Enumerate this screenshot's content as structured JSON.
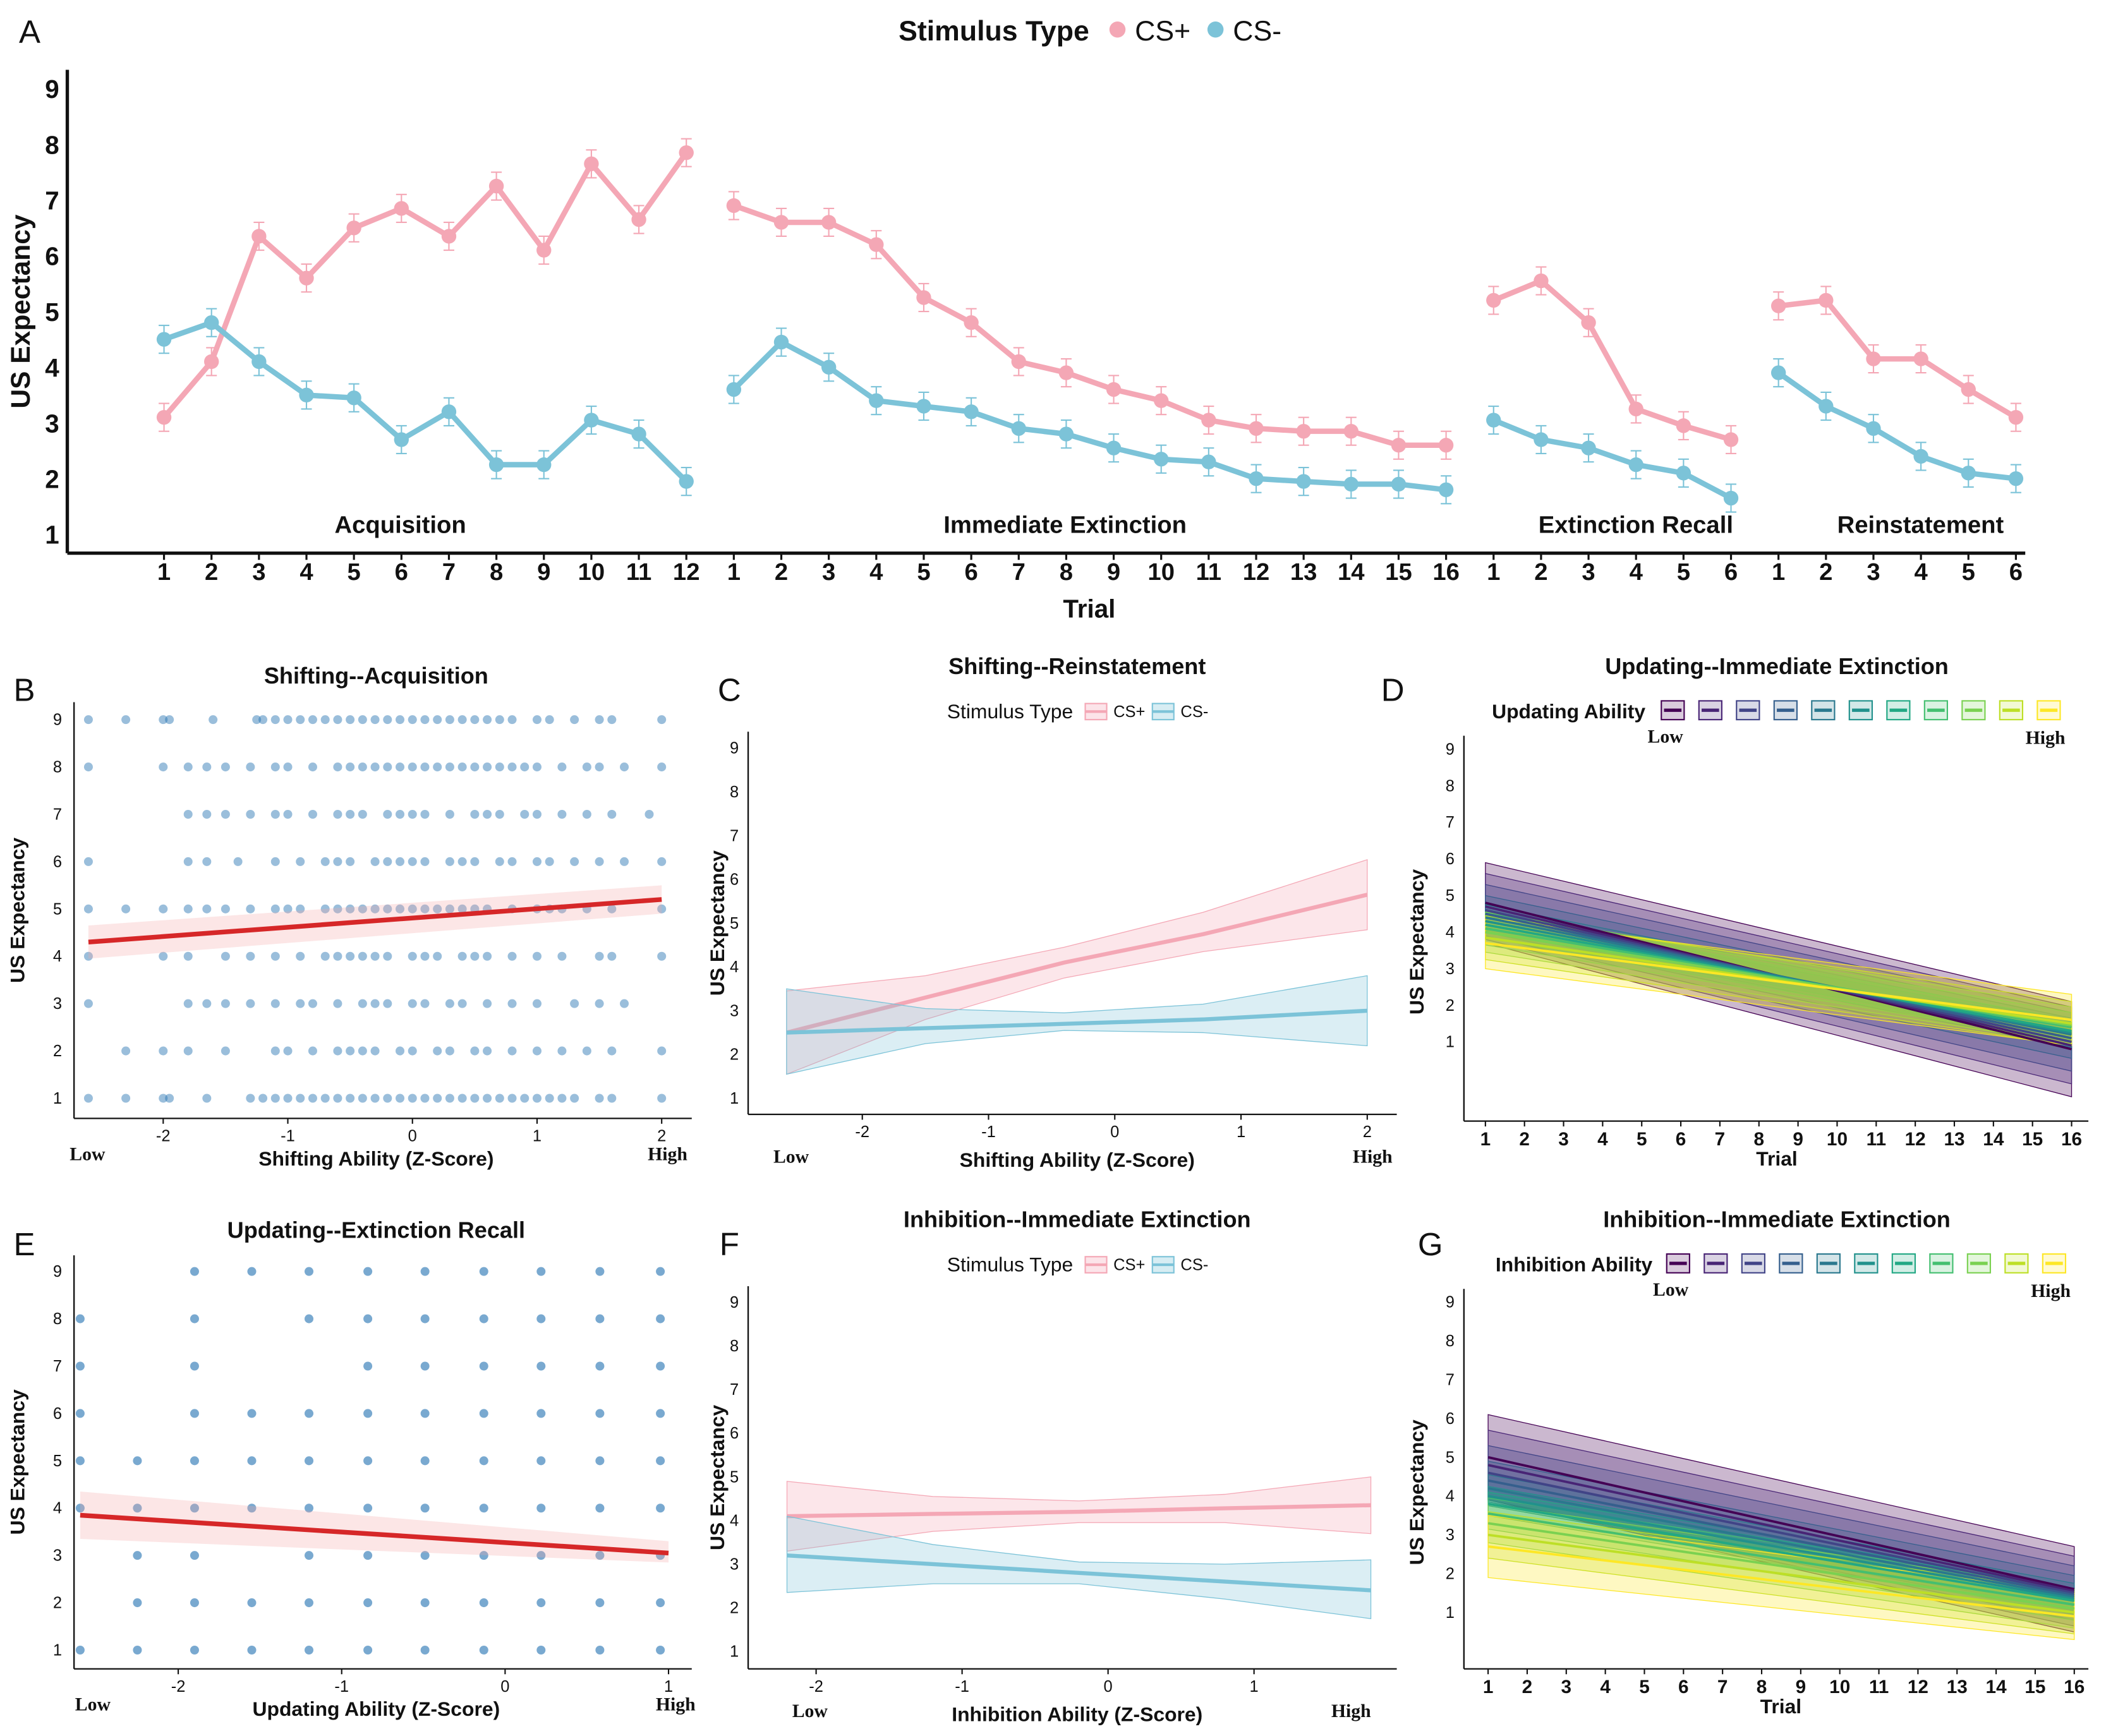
{
  "panel_letters": [
    "A",
    "B",
    "C",
    "D",
    "E",
    "F",
    "G"
  ],
  "colors": {
    "cs_plus": "#f4a7b5",
    "cs_minus": "#7cc3d8",
    "fit_line": "#d62728",
    "fit_ribbon": "#f4a7a7",
    "scatter": "#1f6fb0",
    "viridis": [
      "#440154",
      "#482475",
      "#414487",
      "#355f8d",
      "#2a788e",
      "#21918c",
      "#22a884",
      "#44bf70",
      "#7ad151",
      "#bddf26",
      "#fde725"
    ]
  },
  "chart_data": [
    {
      "type": "line",
      "ylabel": "US Expectancy",
      "xlabel": "Trial",
      "legend_title": "Stimulus Type",
      "legend_position": "top",
      "yticks": [
        1,
        2,
        3,
        4,
        5,
        6,
        7,
        8,
        9
      ],
      "ylim": [
        1,
        9
      ],
      "error_bar_approx": 0.25,
      "phases": [
        {
          "name": "Acquisition",
          "trials": [
            1,
            2,
            3,
            4,
            5,
            6,
            7,
            8,
            9,
            10,
            11,
            12
          ]
        },
        {
          "name": "Immediate Extinction",
          "trials": [
            1,
            2,
            3,
            4,
            5,
            6,
            7,
            8,
            9,
            10,
            11,
            12,
            13,
            14,
            15,
            16
          ]
        },
        {
          "name": "Extinction Recall",
          "trials": [
            1,
            2,
            3,
            4,
            5,
            6
          ]
        },
        {
          "name": "Reinstatement",
          "trials": [
            1,
            2,
            3,
            4,
            5,
            6
          ]
        }
      ],
      "series": [
        {
          "name": "CS+",
          "values": [
            [
              3.1,
              4.1,
              6.35,
              5.6,
              6.5,
              6.85,
              6.35,
              7.25,
              6.1,
              7.65,
              6.65,
              7.85
            ],
            [
              6.9,
              6.6,
              6.6,
              6.2,
              5.25,
              4.8,
              4.1,
              3.9,
              3.6,
              3.4,
              3.05,
              2.9,
              2.85,
              2.85,
              2.6,
              2.6
            ],
            [
              5.2,
              5.55,
              4.8,
              3.25,
              2.95,
              2.7
            ],
            [
              5.1,
              5.2,
              4.15,
              4.15,
              3.6,
              3.1
            ]
          ]
        },
        {
          "name": "CS-",
          "values": [
            [
              4.5,
              4.8,
              4.1,
              3.5,
              3.45,
              2.7,
              3.2,
              2.25,
              2.25,
              3.05,
              2.8,
              1.95
            ],
            [
              3.6,
              4.45,
              4.0,
              3.4,
              3.3,
              3.2,
              2.9,
              2.8,
              2.55,
              2.35,
              2.3,
              2.0,
              1.95,
              1.9,
              1.9,
              1.8
            ],
            [
              3.05,
              2.7,
              2.55,
              2.25,
              2.1,
              1.65
            ],
            [
              3.9,
              3.3,
              2.9,
              2.4,
              2.1,
              2.0
            ]
          ]
        }
      ]
    },
    {
      "type": "scatter",
      "title": "Shifting--Acquisition",
      "ylabel": "US Expectancy",
      "xlabel": "Shifting Ability (Z-Score)",
      "xlow": "Low",
      "xhigh": "High",
      "xticks": [
        -2,
        -1,
        0,
        1,
        2
      ],
      "yticks": [
        1,
        2,
        3,
        4,
        5,
        6,
        7,
        8,
        9
      ],
      "points": [
        {
          "y": 9,
          "x": [
            -2.6,
            -2.3,
            -2.0,
            -1.95,
            -1.6,
            -1.25,
            -1.2,
            -1.1,
            -1.0,
            -0.9,
            -0.8,
            -0.7,
            -0.6,
            -0.5,
            -0.4,
            -0.3,
            -0.2,
            -0.1,
            0,
            0.1,
            0.2,
            0.3,
            0.4,
            0.5,
            0.6,
            0.7,
            0.8,
            1.0,
            1.1,
            1.3,
            1.5,
            1.6,
            2.0
          ]
        },
        {
          "y": 8,
          "x": [
            -2.6,
            -2.0,
            -1.8,
            -1.65,
            -1.5,
            -1.3,
            -1.1,
            -1.0,
            -0.8,
            -0.6,
            -0.5,
            -0.4,
            -0.3,
            -0.2,
            -0.1,
            0,
            0.1,
            0.2,
            0.3,
            0.4,
            0.5,
            0.6,
            0.7,
            0.8,
            0.9,
            1.0,
            1.2,
            1.4,
            1.5,
            1.7,
            2.0
          ]
        },
        {
          "y": 7,
          "x": [
            -1.8,
            -1.65,
            -1.5,
            -1.3,
            -1.1,
            -1.0,
            -0.8,
            -0.6,
            -0.5,
            -0.4,
            -0.2,
            -0.1,
            0,
            0.1,
            0.3,
            0.5,
            0.6,
            0.7,
            0.9,
            1.0,
            1.2,
            1.4,
            1.6,
            1.9
          ]
        },
        {
          "y": 6,
          "x": [
            -2.6,
            -1.8,
            -1.65,
            -1.4,
            -1.1,
            -0.9,
            -0.7,
            -0.6,
            -0.5,
            -0.3,
            -0.2,
            -0.1,
            0,
            0.1,
            0.3,
            0.4,
            0.5,
            0.7,
            0.8,
            1.0,
            1.1,
            1.3,
            1.5,
            1.7,
            2.0
          ]
        },
        {
          "y": 5,
          "x": [
            -2.6,
            -2.3,
            -2.0,
            -1.8,
            -1.65,
            -1.5,
            -1.3,
            -1.1,
            -1.0,
            -0.9,
            -0.7,
            -0.6,
            -0.5,
            -0.4,
            -0.3,
            -0.2,
            -0.1,
            0,
            0.1,
            0.2,
            0.3,
            0.4,
            0.5,
            0.6,
            0.8,
            1.0,
            1.1,
            1.2,
            1.4,
            1.6,
            2.0
          ]
        },
        {
          "y": 4,
          "x": [
            -2.6,
            -2.0,
            -1.8,
            -1.5,
            -1.3,
            -1.1,
            -0.9,
            -0.7,
            -0.6,
            -0.5,
            -0.4,
            -0.3,
            -0.2,
            0,
            0.1,
            0.2,
            0.4,
            0.5,
            0.6,
            0.8,
            1.0,
            1.2,
            1.5,
            1.6,
            2.0
          ]
        },
        {
          "y": 3,
          "x": [
            -2.6,
            -1.8,
            -1.65,
            -1.5,
            -1.3,
            -1.1,
            -0.9,
            -0.8,
            -0.6,
            -0.4,
            -0.3,
            -0.2,
            0,
            0.1,
            0.3,
            0.4,
            0.6,
            0.8,
            1.0,
            1.3,
            1.5,
            1.7
          ]
        },
        {
          "y": 2,
          "x": [
            -2.3,
            -2.0,
            -1.8,
            -1.5,
            -1.1,
            -1.0,
            -0.8,
            -0.6,
            -0.5,
            -0.4,
            -0.3,
            -0.1,
            0,
            0.2,
            0.3,
            0.5,
            0.6,
            0.8,
            1.0,
            1.2,
            1.4,
            1.6,
            2.0
          ]
        },
        {
          "y": 1,
          "x": [
            -2.6,
            -2.3,
            -2.0,
            -1.95,
            -1.65,
            -1.3,
            -1.2,
            -1.1,
            -1.0,
            -0.9,
            -0.8,
            -0.7,
            -0.6,
            -0.5,
            -0.4,
            -0.3,
            -0.2,
            -0.1,
            0,
            0.1,
            0.2,
            0.3,
            0.4,
            0.5,
            0.6,
            0.7,
            0.8,
            0.9,
            1.0,
            1.1,
            1.2,
            1.3,
            1.5,
            1.6,
            2.0
          ]
        }
      ],
      "fit": {
        "x": [
          -2.6,
          2.0
        ],
        "y": [
          4.3,
          5.2
        ],
        "ci_lower": [
          3.95,
          4.9
        ],
        "ci_upper": [
          4.65,
          5.5
        ]
      }
    },
    {
      "type": "line",
      "title": "Shifting--Reinstatement",
      "ylabel": "US Expectancy",
      "xlabel": "Shifting Ability (Z-Score)",
      "xlow": "Low",
      "xhigh": "High",
      "xticks": [
        -2,
        -1,
        0,
        1,
        2
      ],
      "yticks": [
        1,
        2,
        3,
        4,
        5,
        6,
        7,
        8,
        9
      ],
      "legend_title": "Stimulus Type",
      "legend_position": "top",
      "series": [
        {
          "name": "CS+",
          "x": [
            -2.6,
            -1.5,
            -0.4,
            0.7,
            2.0
          ],
          "y": [
            2.5,
            3.3,
            4.1,
            4.75,
            5.65
          ],
          "ci_lower": [
            1.55,
            2.8,
            3.75,
            4.35,
            4.85
          ],
          "ci_upper": [
            3.45,
            3.8,
            4.45,
            5.25,
            6.45
          ]
        },
        {
          "name": "CS-",
          "x": [
            -2.6,
            -1.5,
            -0.4,
            0.7,
            2.0
          ],
          "y": [
            2.5,
            2.6,
            2.7,
            2.8,
            3.0
          ],
          "ci_lower": [
            1.55,
            2.25,
            2.55,
            2.5,
            2.2
          ],
          "ci_upper": [
            3.5,
            3.05,
            2.95,
            3.15,
            3.8
          ]
        }
      ]
    },
    {
      "type": "line",
      "title": "Updating--Immediate Extinction",
      "ylabel": "US Expectancy",
      "xlabel": "Trial",
      "legend_title": "Updating Ability",
      "legend_low": "Low",
      "legend_high": "High",
      "legend_position": "top",
      "xticks": [
        1,
        2,
        3,
        4,
        5,
        6,
        7,
        8,
        9,
        10,
        11,
        12,
        13,
        14,
        15,
        16
      ],
      "yticks": [
        1,
        2,
        3,
        4,
        5,
        6,
        7,
        8,
        9
      ],
      "levels": {
        "start": [
          4.8,
          4.7,
          4.6,
          4.5,
          4.4,
          4.3,
          4.2,
          4.1,
          4.0,
          3.85,
          3.7
        ],
        "end": [
          0.8,
          0.9,
          1.0,
          1.1,
          1.2,
          1.25,
          1.3,
          1.4,
          1.45,
          1.5,
          1.6
        ],
        "ci_start": [
          1.1,
          0.9,
          0.7,
          0.5,
          0.35,
          0.25,
          0.35,
          0.45,
          0.55,
          0.6,
          0.7
        ],
        "ci_end": [
          1.3,
          1.05,
          0.8,
          0.55,
          0.35,
          0.25,
          0.3,
          0.4,
          0.5,
          0.6,
          0.7
        ]
      }
    },
    {
      "type": "scatter",
      "title": "Updating--Extinction Recall",
      "ylabel": "US Expectancy",
      "xlabel": "Updating Ability (Z-Score)",
      "xlow": "Low",
      "xhigh": "High",
      "xticks": [
        -2,
        -1,
        0,
        1
      ],
      "yticks": [
        1,
        2,
        3,
        4,
        5,
        6,
        7,
        8,
        9
      ],
      "points": [
        {
          "x": -2.6,
          "y": [
            8,
            7,
            6,
            5,
            4,
            1
          ]
        },
        {
          "x": -2.25,
          "y": [
            5,
            4,
            3,
            2,
            1
          ]
        },
        {
          "x": -1.9,
          "y": [
            9,
            8,
            7,
            6,
            5,
            4,
            3,
            2,
            1
          ]
        },
        {
          "x": -1.55,
          "y": [
            9,
            6,
            5,
            4,
            2,
            1
          ]
        },
        {
          "x": -1.2,
          "y": [
            9,
            8,
            6,
            5,
            4,
            3,
            2,
            1
          ]
        },
        {
          "x": -0.84,
          "y": [
            9,
            8,
            7,
            6,
            5,
            4,
            3,
            2,
            1
          ]
        },
        {
          "x": -0.49,
          "y": [
            9,
            8,
            7,
            6,
            5,
            4,
            3,
            2,
            1
          ]
        },
        {
          "x": -0.13,
          "y": [
            9,
            8,
            7,
            6,
            5,
            4,
            3,
            2,
            1
          ]
        },
        {
          "x": 0.22,
          "y": [
            9,
            8,
            7,
            6,
            5,
            4,
            3,
            2,
            1
          ]
        },
        {
          "x": 0.58,
          "y": [
            9,
            8,
            7,
            6,
            5,
            4,
            3,
            2,
            1
          ]
        },
        {
          "x": 0.95,
          "y": [
            9,
            8,
            7,
            6,
            5,
            4,
            3,
            2,
            1
          ]
        }
      ],
      "fit": {
        "x": [
          -2.6,
          1.0
        ],
        "y": [
          3.85,
          3.05
        ],
        "ci_lower": [
          3.35,
          2.85
        ],
        "ci_upper": [
          4.35,
          3.3
        ]
      }
    },
    {
      "type": "line",
      "title": "Inhibition--Immediate Extinction",
      "ylabel": "US Expectancy",
      "xlabel": "Inhibition Ability (Z-Score)",
      "xlow": "Low",
      "xhigh": "High",
      "xticks": [
        -2,
        -1,
        0,
        1
      ],
      "yticks": [
        1,
        2,
        3,
        4,
        5,
        6,
        7,
        8,
        9
      ],
      "legend_title": "Stimulus Type",
      "legend_position": "top",
      "series": [
        {
          "name": "CS+",
          "x": [
            -2.2,
            -1.2,
            -0.2,
            0.8,
            1.8
          ],
          "y": [
            4.1,
            4.15,
            4.2,
            4.28,
            4.35
          ],
          "ci_lower": [
            3.3,
            3.75,
            3.95,
            3.95,
            3.7
          ],
          "ci_upper": [
            4.9,
            4.55,
            4.45,
            4.6,
            5.0
          ]
        },
        {
          "name": "CS-",
          "x": [
            -2.2,
            -1.2,
            -0.2,
            0.8,
            1.8
          ],
          "y": [
            3.2,
            3.0,
            2.8,
            2.6,
            2.4
          ],
          "ci_lower": [
            2.35,
            2.55,
            2.55,
            2.2,
            1.75
          ],
          "ci_upper": [
            4.1,
            3.45,
            3.05,
            3.0,
            3.1
          ]
        }
      ]
    },
    {
      "type": "line",
      "title": "Inhibition--Immediate Extinction",
      "ylabel": "US Expectancy",
      "xlabel": "Trial",
      "legend_title": "Inhibition Ability",
      "legend_low": "Low",
      "legend_high": "High",
      "legend_position": "top",
      "xticks": [
        1,
        2,
        3,
        4,
        5,
        6,
        7,
        8,
        9,
        10,
        11,
        12,
        13,
        14,
        15,
        16
      ],
      "yticks": [
        1,
        2,
        3,
        4,
        5,
        6,
        7,
        8,
        9
      ],
      "levels": {
        "start": [
          5.0,
          4.8,
          4.6,
          4.4,
          4.2,
          4.0,
          3.8,
          3.55,
          3.3,
          3.0,
          2.7
        ],
        "end": [
          1.6,
          1.55,
          1.5,
          1.45,
          1.4,
          1.35,
          1.3,
          1.2,
          1.1,
          1.0,
          0.9
        ],
        "ci_start": [
          1.1,
          0.9,
          0.7,
          0.5,
          0.35,
          0.25,
          0.3,
          0.4,
          0.5,
          0.6,
          0.8
        ],
        "ci_end": [
          1.1,
          0.9,
          0.7,
          0.5,
          0.35,
          0.25,
          0.3,
          0.4,
          0.5,
          0.55,
          0.6
        ]
      }
    }
  ]
}
